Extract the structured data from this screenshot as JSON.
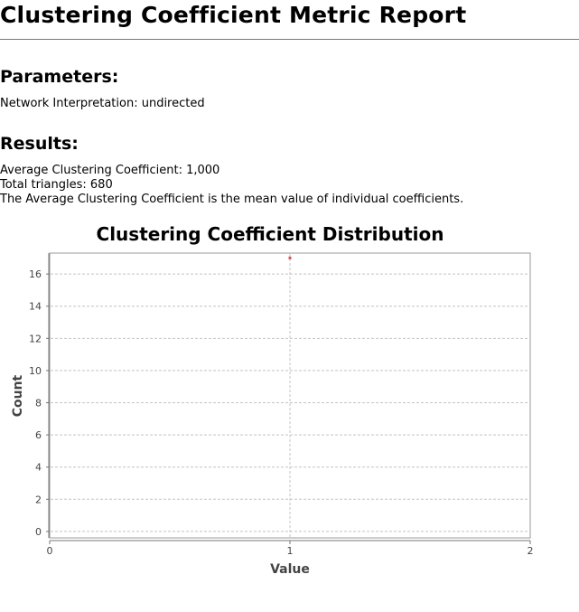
{
  "report": {
    "title": "Clustering Coefficient Metric Report"
  },
  "parameters": {
    "heading": "Parameters:",
    "lines": [
      "Network Interpretation:  undirected"
    ]
  },
  "results": {
    "heading": "Results:",
    "lines": [
      "Average Clustering Coefficient: 1,000",
      "Total triangles: 680",
      "The Average Clustering Coefficient is the mean value of individual coefficients."
    ]
  },
  "colors": {
    "point": "#e05050",
    "grid": "#c4c4c4",
    "axis": "#777777",
    "rule": "#7a7a7a"
  },
  "chart_data": {
    "type": "scatter",
    "title": "Clustering Coefficient Distribution",
    "xlabel": "Value",
    "ylabel": "Count",
    "xlim": [
      0,
      2
    ],
    "ylim": [
      -0.4,
      17.3
    ],
    "x_ticks": [
      0,
      1,
      2
    ],
    "y_ticks": [
      0,
      2,
      4,
      6,
      8,
      10,
      12,
      14,
      16
    ],
    "grid": true,
    "legend": "none",
    "series": [
      {
        "x": [
          1
        ],
        "y": [
          17
        ]
      }
    ]
  }
}
